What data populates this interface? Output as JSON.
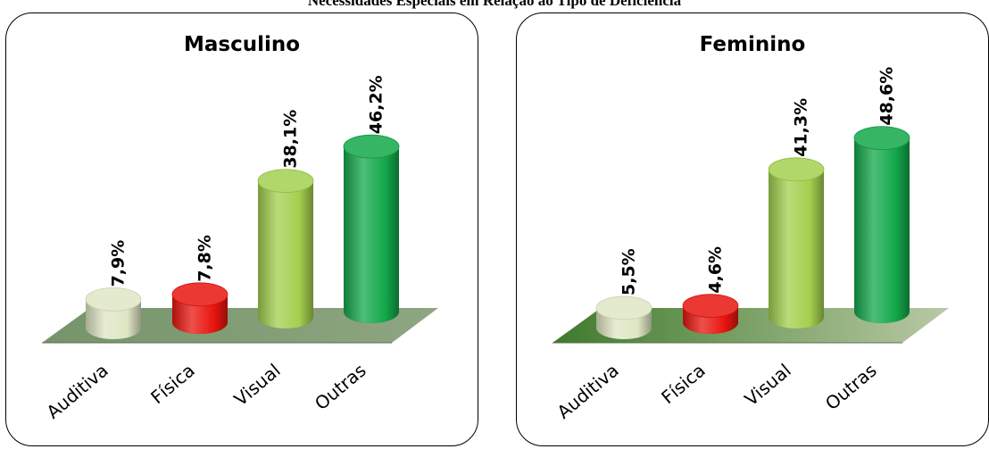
{
  "page": {
    "title": "Necessidades Especiais em Relação ao Tipo de Deficiência"
  },
  "colors": {
    "auditiva": "#dfe6c4",
    "fisica": "#e8150f",
    "visual": "#a3cf4e",
    "outras": "#13a84a",
    "floor": "#7f9a72"
  },
  "chart_data": [
    {
      "type": "bar",
      "title": "Masculino",
      "categories": [
        "Auditiva",
        "Física",
        "Visual",
        "Outras"
      ],
      "values": [
        7.9,
        7.8,
        38.1,
        46.2
      ],
      "value_labels": [
        "7,9%",
        "7,8%",
        "38,1%",
        "46,2%"
      ],
      "xlabel": "",
      "ylabel": "",
      "ylim": [
        0,
        50
      ],
      "grid": false,
      "legend": "none"
    },
    {
      "type": "bar",
      "title": "Feminino",
      "categories": [
        "Auditiva",
        "Física",
        "Visual",
        "Outras"
      ],
      "values": [
        5.5,
        4.6,
        41.3,
        48.6
      ],
      "value_labels": [
        "5,5%",
        "4,6%",
        "41,3%",
        "48,6%"
      ],
      "xlabel": "",
      "ylabel": "",
      "ylim": [
        0,
        50
      ],
      "grid": false,
      "legend": "none"
    }
  ]
}
